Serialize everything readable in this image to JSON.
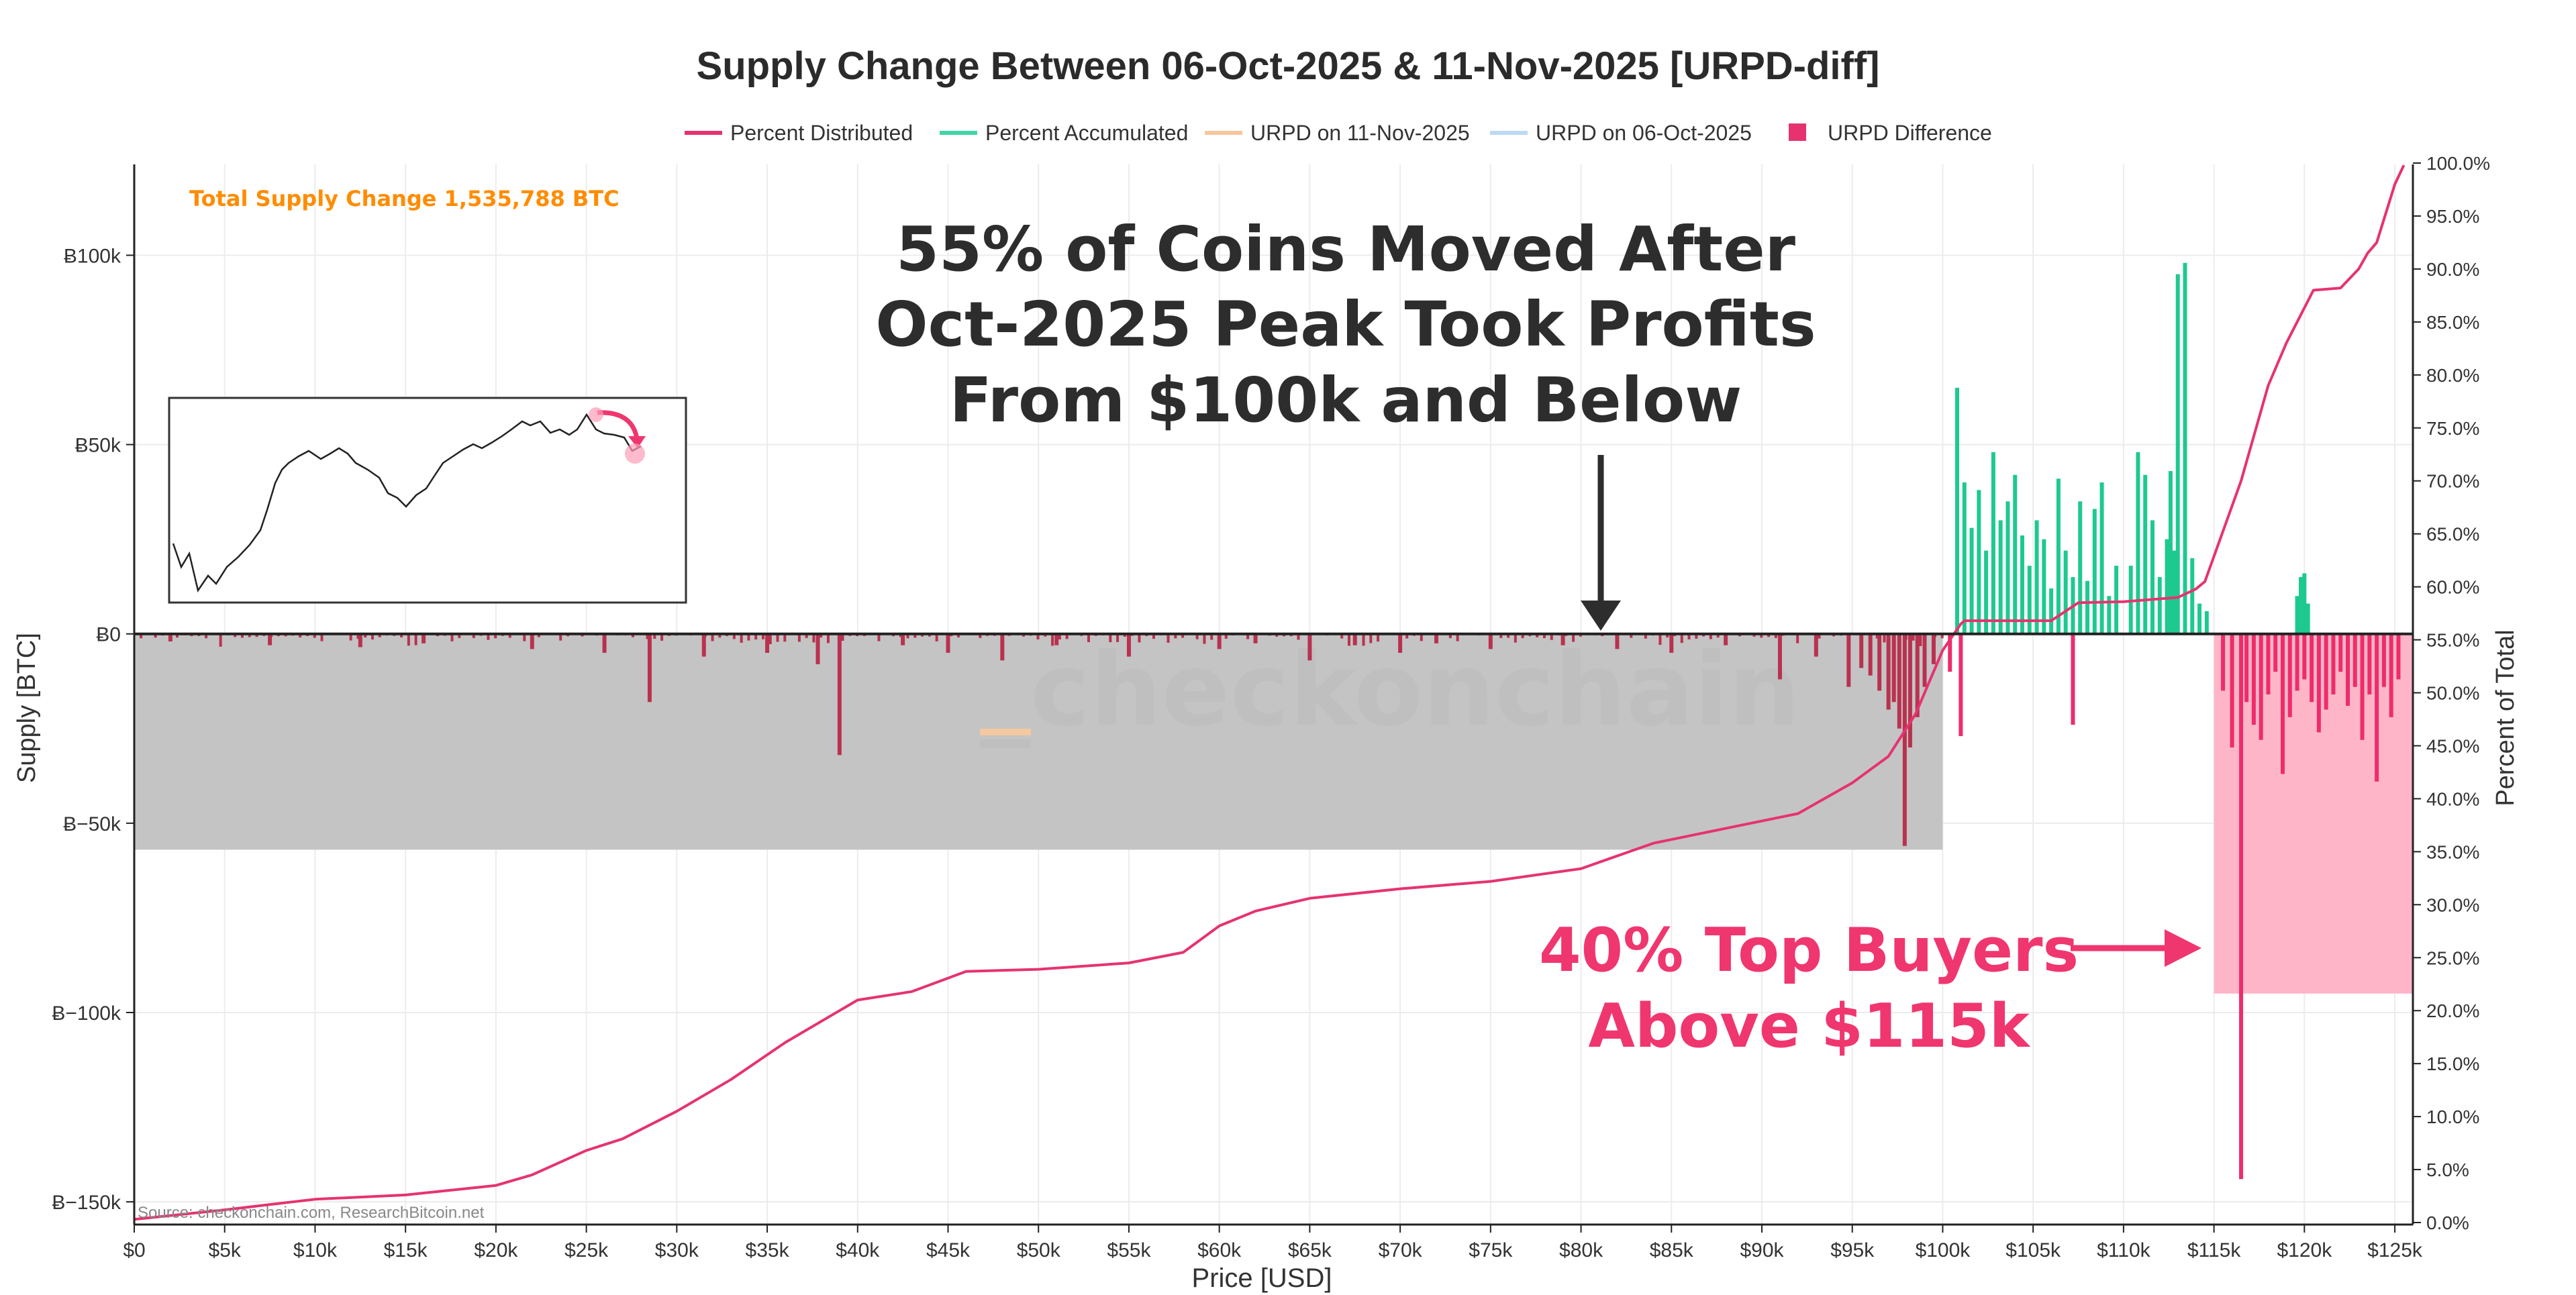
{
  "chart_data": {
    "type": "bar",
    "title": "Supply Change Between 06-Oct-2025 & 11-Nov-2025 [URPD-diff]",
    "legend": [
      {
        "label": "Percent Distributed",
        "color": "#e6336f",
        "kind": "line"
      },
      {
        "label": "Percent Accumulated",
        "color": "#3fd6a5",
        "kind": "line"
      },
      {
        "label": "URPD on 11-Nov-2025",
        "color": "#f6c79c",
        "kind": "line"
      },
      {
        "label": "URPD on 06-Oct-2025",
        "color": "#bcd9f5",
        "kind": "line"
      },
      {
        "label": "URPD Difference",
        "color": "#e6336f",
        "kind": "square"
      }
    ],
    "legend_position": "top-center",
    "xlabel": "Price [USD]",
    "ylabel": "Supply [BTC]",
    "y2label": "Percent of Total",
    "xlim": [
      0,
      126000
    ],
    "ylim": [
      -156000,
      124000
    ],
    "y2lim": [
      0,
      100
    ],
    "x_ticks": [
      {
        "v": 0,
        "label": "$0"
      },
      {
        "v": 5000,
        "label": "$5k"
      },
      {
        "v": 10000,
        "label": "$10k"
      },
      {
        "v": 15000,
        "label": "$15k"
      },
      {
        "v": 20000,
        "label": "$20k"
      },
      {
        "v": 25000,
        "label": "$25k"
      },
      {
        "v": 30000,
        "label": "$30k"
      },
      {
        "v": 35000,
        "label": "$35k"
      },
      {
        "v": 40000,
        "label": "$40k"
      },
      {
        "v": 45000,
        "label": "$45k"
      },
      {
        "v": 50000,
        "label": "$50k"
      },
      {
        "v": 55000,
        "label": "$55k"
      },
      {
        "v": 60000,
        "label": "$60k"
      },
      {
        "v": 65000,
        "label": "$65k"
      },
      {
        "v": 70000,
        "label": "$70k"
      },
      {
        "v": 75000,
        "label": "$75k"
      },
      {
        "v": 80000,
        "label": "$80k"
      },
      {
        "v": 85000,
        "label": "$85k"
      },
      {
        "v": 90000,
        "label": "$90k"
      },
      {
        "v": 95000,
        "label": "$95k"
      },
      {
        "v": 100000,
        "label": "$100k"
      },
      {
        "v": 105000,
        "label": "$105k"
      },
      {
        "v": 110000,
        "label": "$110k"
      },
      {
        "v": 115000,
        "label": "$115k"
      },
      {
        "v": 120000,
        "label": "$120k"
      },
      {
        "v": 125000,
        "label": "$125k"
      }
    ],
    "y_ticks": [
      {
        "v": 100000,
        "label": "Ƀ100k"
      },
      {
        "v": 50000,
        "label": "Ƀ50k"
      },
      {
        "v": 0,
        "label": "Ƀ0"
      },
      {
        "v": -50000,
        "label": "Ƀ−50k"
      },
      {
        "v": -100000,
        "label": "Ƀ−100k"
      },
      {
        "v": -150000,
        "label": "Ƀ−150k"
      }
    ],
    "y2_ticks": [
      {
        "v": 0,
        "label": "0.0%"
      },
      {
        "v": 5,
        "label": "5.0%"
      },
      {
        "v": 10,
        "label": "10.0%"
      },
      {
        "v": 15,
        "label": "15.0%"
      },
      {
        "v": 20,
        "label": "20.0%"
      },
      {
        "v": 25,
        "label": "25.0%"
      },
      {
        "v": 30,
        "label": "30.0%"
      },
      {
        "v": 35,
        "label": "35.0%"
      },
      {
        "v": 40,
        "label": "40.0%"
      },
      {
        "v": 45,
        "label": "45.0%"
      },
      {
        "v": 50,
        "label": "50.0%"
      },
      {
        "v": 55,
        "label": "55.0%"
      },
      {
        "v": 60,
        "label": "60.0%"
      },
      {
        "v": 65,
        "label": "65.0%"
      },
      {
        "v": 70,
        "label": "70.0%"
      },
      {
        "v": 75,
        "label": "75.0%"
      },
      {
        "v": 80,
        "label": "80.0%"
      },
      {
        "v": 85,
        "label": "85.0%"
      },
      {
        "v": 90,
        "label": "90.0%"
      },
      {
        "v": 95,
        "label": "95.0%"
      },
      {
        "v": 100,
        "label": "100.0%"
      }
    ],
    "series": [
      {
        "name": "URPD Difference (accumulated)",
        "color": "#1ec98f",
        "x": [
          100800,
          101200,
          101600,
          102000,
          102400,
          102800,
          103200,
          103600,
          104000,
          104400,
          104800,
          105200,
          105600,
          106000,
          106400,
          106800,
          107200,
          107600,
          108000,
          108400,
          108800,
          109200,
          109600,
          110400,
          110800,
          111200,
          111600,
          112000,
          112400,
          112600,
          112800,
          113000,
          113400,
          113800,
          114200,
          114600,
          119600,
          119800,
          120000,
          120200
        ],
        "values": [
          65000,
          40000,
          28000,
          38000,
          22000,
          48000,
          30000,
          35000,
          42000,
          26000,
          18000,
          30000,
          25000,
          12000,
          41000,
          22000,
          15000,
          35000,
          14000,
          33000,
          40000,
          10000,
          18000,
          18000,
          48000,
          42000,
          30000,
          15000,
          25000,
          43000,
          22000,
          95000,
          98000,
          20000,
          8000,
          6000,
          10000,
          15000,
          16000,
          8000
        ]
      },
      {
        "name": "URPD Difference (distributed)",
        "color": "#b8324f",
        "x": [
          2000,
          7500,
          12500,
          16000,
          22000,
          26000,
          28500,
          31500,
          35000,
          37800,
          39000,
          42500,
          45000,
          48000,
          51000,
          55000,
          60000,
          62000,
          65000,
          67500,
          70000,
          72000,
          75000,
          79000,
          82000,
          85000,
          88000,
          91000,
          93000,
          94800,
          95500,
          96000,
          96500,
          97000,
          97300,
          97600,
          97900,
          98200,
          98600,
          99000,
          99500
        ],
        "values": [
          -2000,
          -3000,
          -3500,
          -2500,
          -4000,
          -5000,
          -18000,
          -6000,
          -5000,
          -8000,
          -32000,
          -3000,
          -5000,
          -7000,
          -3000,
          -6000,
          -4000,
          -2500,
          -7000,
          -3000,
          -5000,
          -2500,
          -4000,
          -3000,
          -4000,
          -5000,
          -3000,
          -12000,
          -6000,
          -14000,
          -9000,
          -11000,
          -15000,
          -20000,
          -18000,
          -25000,
          -56000,
          -30000,
          -22000,
          -14000,
          -8000
        ]
      },
      {
        "name": "URPD Difference (top buyers)",
        "color": "#ee2c6c",
        "x": [
          100400,
          101000,
          107200,
          115500,
          116000,
          116500,
          116800,
          117200,
          117600,
          118000,
          118400,
          118800,
          119200,
          119600,
          120000,
          120400,
          120800,
          121200,
          121600,
          122000,
          122400,
          122800,
          123200,
          123600,
          124000,
          124400,
          124800,
          125200
        ],
        "values": [
          -10000,
          -27000,
          -24000,
          -15000,
          -30000,
          -144000,
          -18000,
          -24000,
          -28000,
          -16000,
          -10000,
          -37000,
          -22000,
          -15000,
          -12000,
          -18000,
          -26000,
          -20000,
          -16000,
          -10000,
          -19000,
          -14000,
          -28000,
          -16000,
          -39000,
          -14000,
          -22000,
          -12000
        ]
      },
      {
        "name": "Percent Distributed",
        "color": "#e6336f",
        "x": [
          0,
          5000,
          10000,
          15000,
          20000,
          22000,
          25000,
          27000,
          30000,
          33000,
          36000,
          39000,
          40000,
          43000,
          46000,
          50000,
          55000,
          58000,
          60000,
          62000,
          65000,
          70000,
          75000,
          80000,
          84000,
          88000,
          92000,
          95000,
          97000,
          98500,
          100000,
          101000,
          101200,
          106000,
          107500,
          110000,
          113000,
          114000,
          114500,
          116500,
          118000,
          119000,
          120500,
          122000,
          123000,
          123500,
          124000,
          125000,
          125500
        ],
        "values": [
          0.3,
          1.2,
          2.2,
          2.6,
          3.5,
          4.5,
          6.8,
          7.9,
          10.5,
          13.5,
          17.0,
          20.0,
          21.0,
          21.8,
          23.7,
          23.9,
          24.5,
          25.5,
          28.0,
          29.4,
          30.6,
          31.5,
          32.2,
          33.4,
          35.8,
          37.2,
          38.6,
          41.5,
          44.0,
          48.0,
          54.0,
          56.5,
          56.8,
          56.8,
          58.5,
          58.6,
          59.0,
          59.8,
          60.5,
          70.0,
          79.0,
          83.0,
          88.0,
          88.2,
          90.0,
          91.5,
          92.5,
          98.0,
          99.8
        ]
      }
    ],
    "shaded_regions": [
      {
        "x_from": 0,
        "x_to": 100000,
        "y_from": -57000,
        "y_to": 0,
        "color": "#c4c4c4"
      },
      {
        "x_from": 115000,
        "x_to": 126000,
        "y_from": -95000,
        "y_to": 0,
        "color": "#ffb5c8"
      }
    ],
    "annotations": {
      "total_supply": "Total Supply Change 1,535,788 BTC",
      "headline_line1": "55% of Coins Moved After",
      "headline_line2": "Oct-2025 Peak Took Profits",
      "headline_line3": "From $100k and Below",
      "pink_line1": "40% Top Buyers",
      "pink_line2": "Above $115k",
      "watermark": "_checkonchain",
      "source": "Source: checkonchain.com, ResearchBitcoin.net"
    },
    "colors": {
      "accent_orange": "#ff8c00",
      "pink": "#f0366f",
      "dark_text": "#2d2d2d",
      "gray_region": "#c4c4c4",
      "pink_region": "#ffb5c8"
    }
  }
}
